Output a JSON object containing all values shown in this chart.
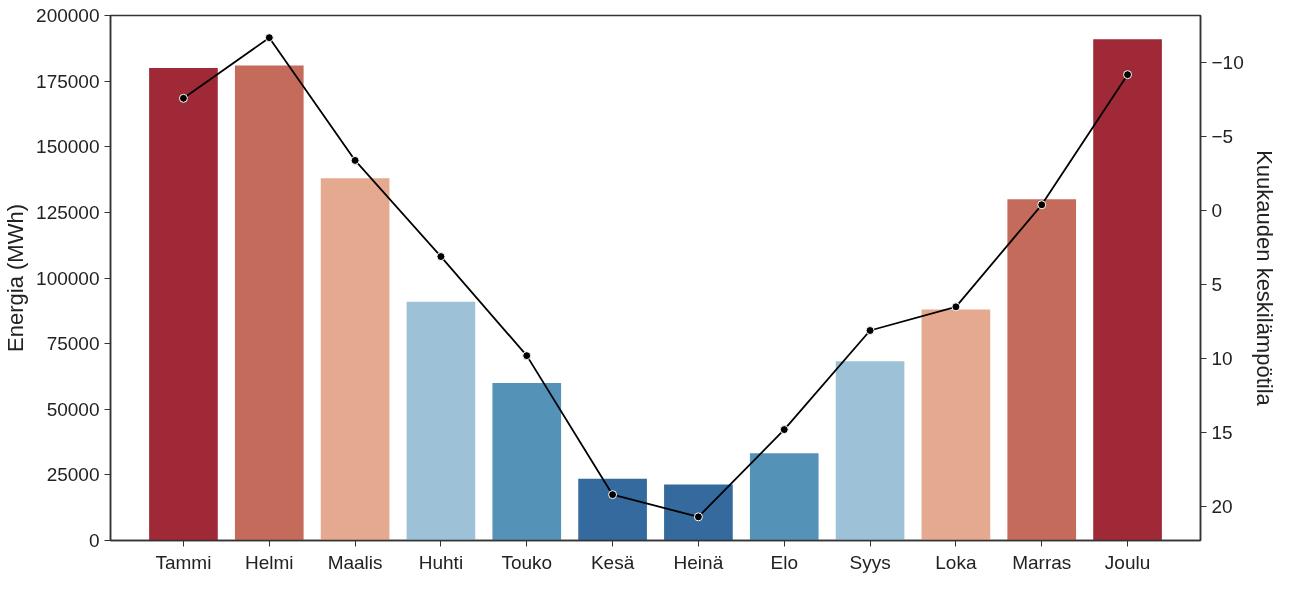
{
  "chart_data": {
    "type": "bar",
    "categories": [
      "Tammi",
      "Helmi",
      "Maalis",
      "Huhti",
      "Touko",
      "Kesä",
      "Heinä",
      "Elo",
      "Syys",
      "Loka",
      "Marras",
      "Joulu"
    ],
    "ylabel": "Energia (MWh)",
    "y2label": "Kuukauden keskilämpötila",
    "ylim": [
      0,
      200000
    ],
    "yticks": [
      0,
      25000,
      50000,
      75000,
      100000,
      125000,
      150000,
      175000,
      200000
    ],
    "y2lim": [
      22.3,
      -13.2
    ],
    "y2ticks": [
      {
        "value": -10,
        "label": "−10"
      },
      {
        "value": -5,
        "label": "−5"
      },
      0,
      5,
      10,
      15,
      20
    ],
    "grid": false,
    "series": [
      {
        "colors": [
          "#9f2936",
          "#c46b5c",
          "#e4a98e",
          "#9dc1d6",
          "#5592b8",
          "#346a9d",
          "#346a9d",
          "#5592b8",
          "#9dc1d6",
          "#e4a98e",
          "#c46b5c",
          "#9f2936"
        ],
        "values": [
          180000,
          181000,
          138000,
          91000,
          60000,
          23500,
          21300,
          33200,
          68300,
          88000,
          130000,
          191000
        ]
      },
      {
        "type": "line",
        "axis": "y2",
        "color": "#000000",
        "marker": "circle",
        "line_style": "solid",
        "values": [
          -7.6,
          -11.7,
          -3.4,
          3.1,
          9.8,
          19.2,
          20.7,
          14.8,
          8.1,
          6.5,
          -0.4,
          -9.2
        ]
      }
    ]
  }
}
